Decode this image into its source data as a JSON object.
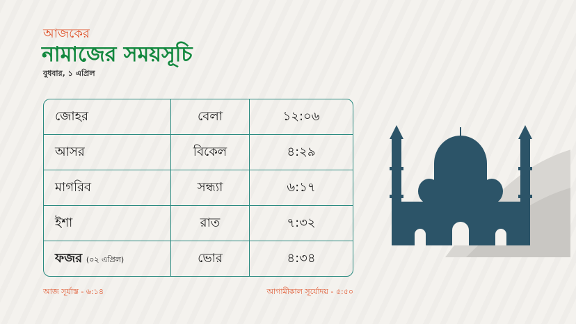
{
  "header": {
    "subtitle": "আজকের",
    "title": "নামাজের সময়সূচি",
    "date": "বুধবার, ১ এপ্রিল"
  },
  "table": {
    "rows": [
      {
        "name": "জোহর",
        "note": "",
        "period": "বেলা",
        "time": "১২:০৬"
      },
      {
        "name": "আসর",
        "note": "",
        "period": "বিকেল",
        "time": "৪:২৯"
      },
      {
        "name": "মাগরিব",
        "note": "",
        "period": "সন্ধ্যা",
        "time": "৬:১৭"
      },
      {
        "name": "ইশা",
        "note": "",
        "period": "রাত",
        "time": "৭:৩২"
      },
      {
        "name": "ফজর",
        "note": "(০২ এপ্রিল)",
        "period": "ভোর",
        "time": "৪:৩৪"
      }
    ]
  },
  "footer": {
    "sunset": "আজ সূর্যাস্ত - ৬:১৪",
    "sunrise": "আগামীকাল সূর্যোদয় -  ৫:৫০"
  },
  "colors": {
    "accent": "#e0532a",
    "title": "#13883f",
    "border": "#2a8a80",
    "mosque": "#2c5468"
  },
  "icons": {
    "illustration": "mosque-icon"
  }
}
